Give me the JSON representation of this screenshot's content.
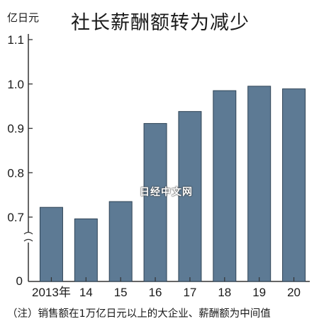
{
  "unit_label": "亿日元",
  "footnote": "（注）销售额在1万亿日元以上的大企业、薪酬额为中间值",
  "watermark": "日经中文网",
  "colors": {
    "bar": "#5d7a94",
    "bar_stroke": "#2f4456",
    "axis": "#333333"
  },
  "chart_data": {
    "type": "bar",
    "title": "社长薪酬额转为减少",
    "categories": [
      "2013年",
      "14",
      "15",
      "16",
      "17",
      "18",
      "19",
      "20"
    ],
    "values": [
      0.722,
      0.696,
      0.735,
      0.911,
      0.938,
      0.985,
      0.995,
      0.989
    ],
    "yticks": [
      0.7,
      0.8,
      0.9,
      1.0,
      1.1
    ],
    "ytick_labels": [
      "0.7",
      "0.8",
      "0.9",
      "1.0",
      "1.1"
    ],
    "baseline_label": "0",
    "ylim": [
      0.65,
      1.1
    ],
    "axis_break": true,
    "grid": false,
    "xlabel": "",
    "ylabel": ""
  }
}
